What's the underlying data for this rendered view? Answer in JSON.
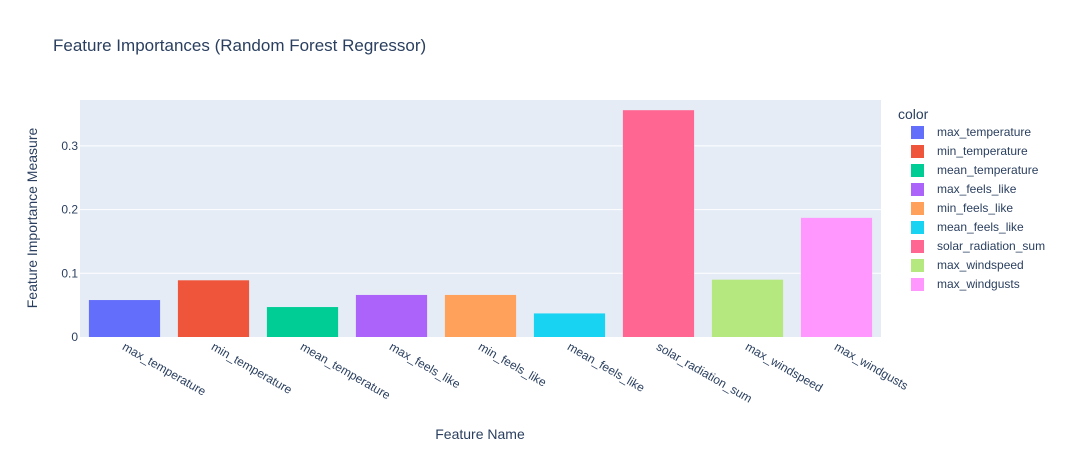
{
  "chart_data": {
    "type": "bar",
    "title": "Feature Importances (Random Forest Regressor)",
    "xlabel": "Feature Name",
    "ylabel": "Feature Importance Measure",
    "categories": [
      "max_temperature",
      "min_temperature",
      "mean_temperature",
      "max_feels_like",
      "min_feels_like",
      "mean_feels_like",
      "solar_radiation_sum",
      "max_windspeed",
      "max_windgusts"
    ],
    "values": [
      0.058,
      0.089,
      0.047,
      0.066,
      0.066,
      0.037,
      0.356,
      0.09,
      0.187
    ],
    "colors": [
      "#636efa",
      "#EF553B",
      "#00cc96",
      "#ab63fa",
      "#FFA15A",
      "#19d3f3",
      "#FF6692",
      "#B6E880",
      "#FF97FF"
    ],
    "ylim": [
      0,
      0.372
    ],
    "yticks": [
      0,
      0.1,
      0.2,
      0.3
    ],
    "ytick_labels": [
      "0",
      "0.1",
      "0.2",
      "0.3"
    ],
    "grid": true,
    "legend": {
      "title": "color",
      "placement": "right",
      "entries": [
        "max_temperature",
        "min_temperature",
        "mean_temperature",
        "max_feels_like",
        "min_feels_like",
        "mean_feels_like",
        "solar_radiation_sum",
        "max_windspeed",
        "max_windgusts"
      ]
    },
    "plot_background": "#E5ECF6"
  }
}
